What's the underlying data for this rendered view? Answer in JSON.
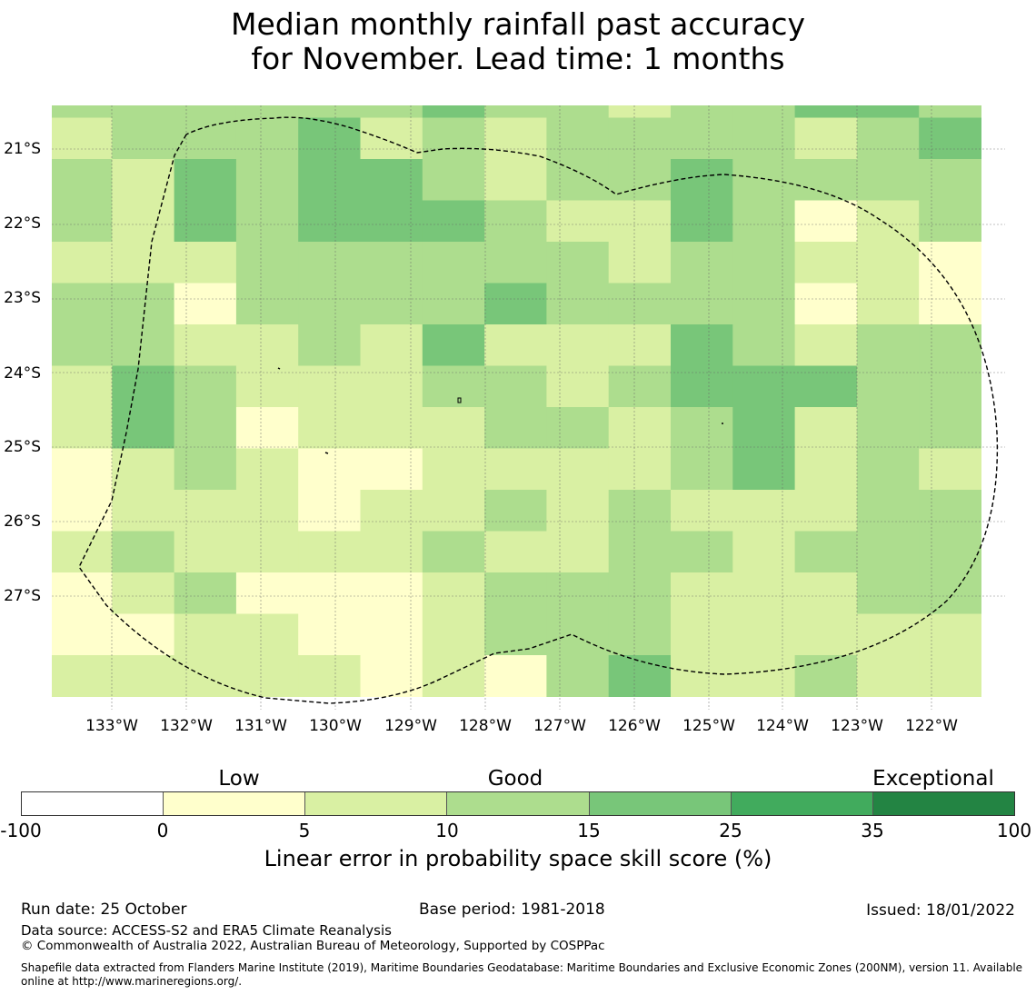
{
  "title": {
    "line1": "Median monthly rainfall past accuracy",
    "line2": "for November. Lead time: 1 months"
  },
  "map": {
    "lat_labels": [
      "21°S",
      "22°S",
      "23°S",
      "24°S",
      "25°S",
      "26°S",
      "27°S"
    ],
    "lon_labels": [
      "133°W",
      "132°W",
      "131°W",
      "130°W",
      "129°W",
      "128°W",
      "127°W",
      "126°W",
      "125°W",
      "124°W",
      "123°W",
      "122°W"
    ],
    "grid_categories": [
      [
        3,
        3,
        3,
        3,
        3,
        3,
        4,
        3,
        3,
        2,
        3,
        3,
        4,
        4,
        3
      ],
      [
        2,
        3,
        3,
        3,
        4,
        2,
        3,
        2,
        3,
        3,
        3,
        3,
        2,
        3,
        4
      ],
      [
        3,
        2,
        4,
        3,
        4,
        4,
        3,
        2,
        3,
        3,
        4,
        3,
        3,
        3,
        3
      ],
      [
        3,
        2,
        4,
        3,
        4,
        4,
        4,
        3,
        2,
        2,
        4,
        3,
        1,
        2,
        3
      ],
      [
        2,
        2,
        2,
        3,
        3,
        3,
        3,
        3,
        3,
        2,
        3,
        3,
        2,
        2,
        1
      ],
      [
        3,
        3,
        1,
        3,
        3,
        3,
        3,
        4,
        3,
        3,
        3,
        3,
        1,
        2,
        1
      ],
      [
        3,
        3,
        2,
        2,
        3,
        2,
        4,
        2,
        2,
        2,
        4,
        3,
        2,
        3,
        3
      ],
      [
        2,
        4,
        3,
        2,
        2,
        2,
        3,
        3,
        2,
        3,
        4,
        4,
        4,
        3,
        3
      ],
      [
        2,
        4,
        3,
        1,
        2,
        2,
        2,
        3,
        3,
        2,
        3,
        4,
        2,
        3,
        3
      ],
      [
        1,
        2,
        3,
        2,
        1,
        1,
        2,
        2,
        2,
        2,
        3,
        4,
        2,
        3,
        2
      ],
      [
        1,
        2,
        2,
        2,
        1,
        2,
        2,
        3,
        2,
        3,
        2,
        2,
        2,
        3,
        3
      ],
      [
        2,
        3,
        2,
        2,
        2,
        2,
        3,
        2,
        2,
        3,
        3,
        2,
        3,
        3,
        3
      ],
      [
        1,
        2,
        3,
        1,
        1,
        1,
        2,
        3,
        3,
        3,
        2,
        2,
        2,
        3,
        3
      ],
      [
        1,
        1,
        2,
        2,
        1,
        1,
        2,
        3,
        3,
        3,
        2,
        2,
        2,
        2,
        2
      ],
      [
        2,
        2,
        2,
        2,
        2,
        1,
        2,
        1,
        3,
        4,
        2,
        2,
        3,
        2,
        2
      ]
    ]
  },
  "legend": {
    "categories": [
      "Low",
      "Good",
      "Exceptional"
    ],
    "colors": [
      "#ffffff",
      "#ffffcc",
      "#d9f0a3",
      "#addd8e",
      "#78c679",
      "#41ab5d",
      "#238443"
    ],
    "ticks": [
      "-100",
      "0",
      "5",
      "10",
      "15",
      "25",
      "35",
      "100"
    ],
    "axis_title": "Linear error in probability space skill score (%)"
  },
  "footer": {
    "run_date": "Run date: 25 October",
    "base_period": "Base period: 1981-2018",
    "issued": "Issued: 18/01/2022",
    "data_source": "Data source: ACCESS-S2 and ERA5 Climate Reanalysis",
    "copyright": "© Commonwealth of Australia 2022, Australian Bureau of Meteorology, Supported by COSPPac",
    "shapefile": "Shapefile data extracted from Flanders Marine Institute (2019), Maritime Boundaries Geodatabase: Maritime Boundaries and Exclusive Economic Zones (200NM), version 11. Available online at http://www.marineregions.org/."
  }
}
